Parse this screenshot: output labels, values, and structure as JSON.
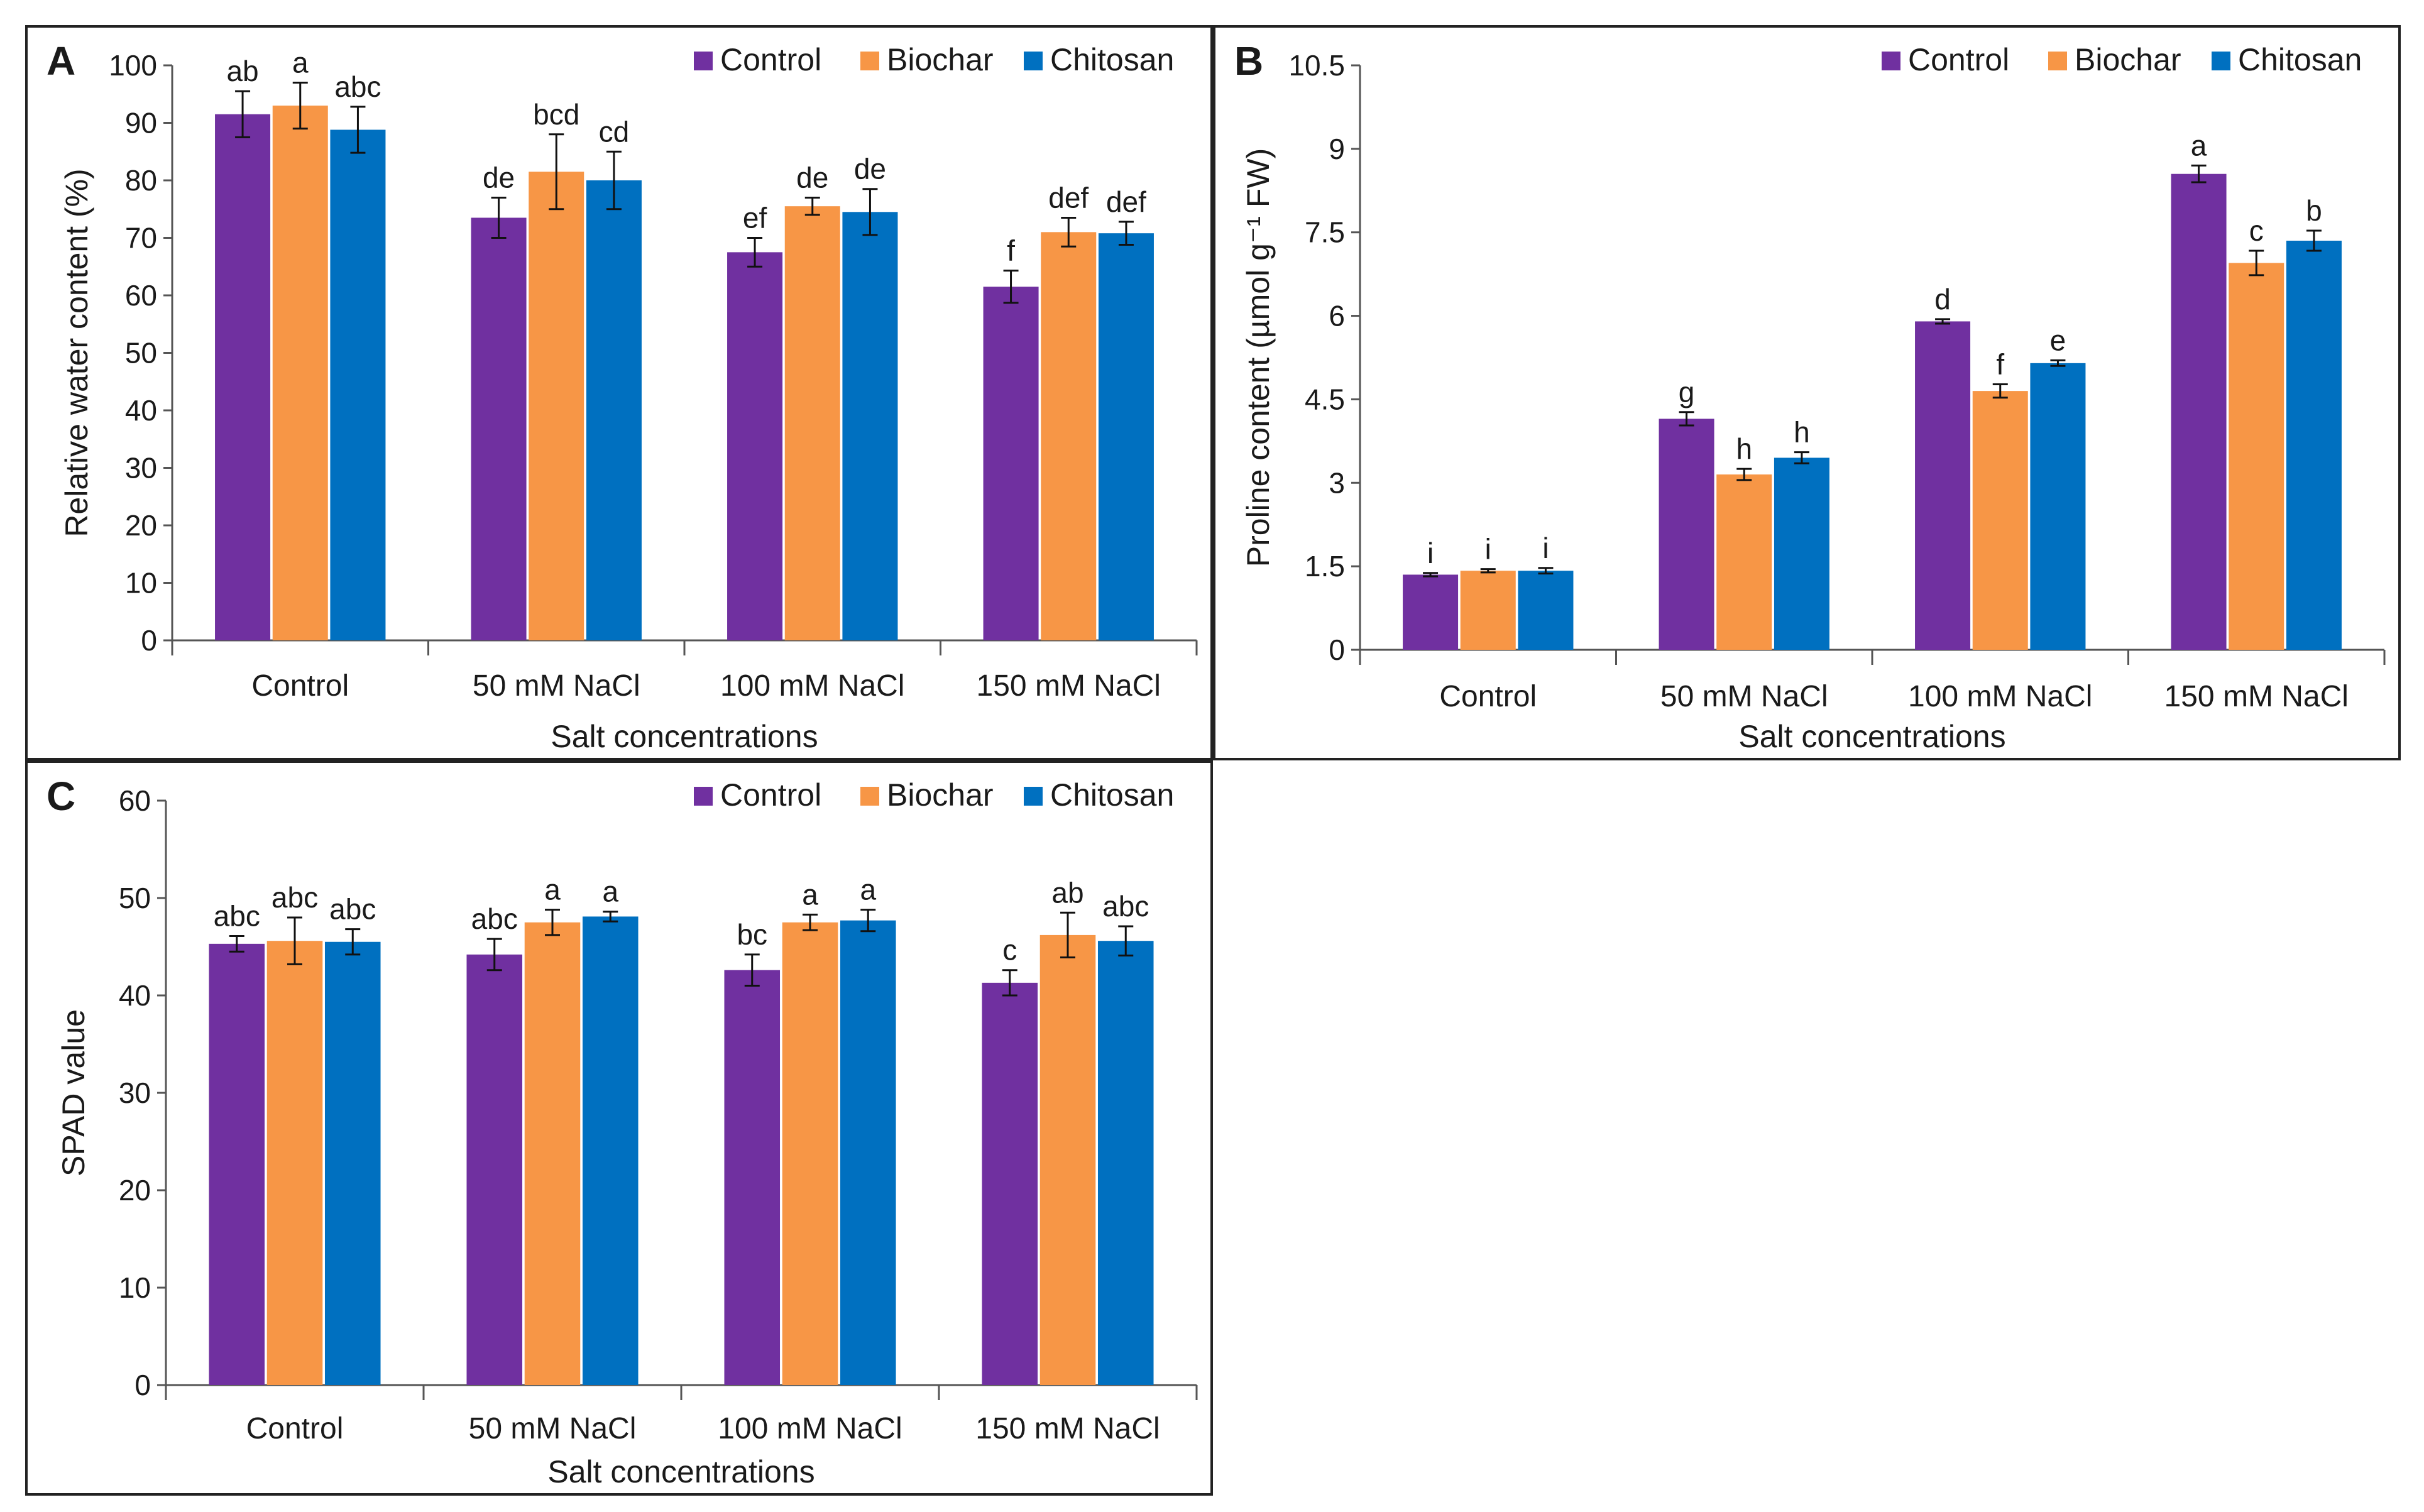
{
  "chart_data": [
    {
      "type": "bar",
      "panel_label": "A",
      "ylabel": "Relative water content (%)",
      "xlabel": "Salt concentrations",
      "ylim": [
        0,
        100
      ],
      "yticks": [
        "0",
        "10",
        "20",
        "30",
        "40",
        "50",
        "60",
        "70",
        "80",
        "90",
        "100"
      ],
      "categories": [
        "Control",
        "50 mM NaCl",
        "100 mM NaCl",
        "150 mM NaCl"
      ],
      "series": [
        {
          "name": "Control",
          "color": "#7030A0",
          "values": [
            91.5,
            73.5,
            67.5,
            61.5
          ],
          "errors": [
            4.0,
            3.5,
            2.5,
            2.8
          ],
          "letters": [
            "ab",
            "de",
            "ef",
            "f"
          ]
        },
        {
          "name": "Biochar",
          "color": "#F79646",
          "values": [
            93.0,
            81.5,
            75.5,
            71.0
          ],
          "errors": [
            4.0,
            6.5,
            1.5,
            2.5
          ],
          "letters": [
            "a",
            "bcd",
            "de",
            "def"
          ]
        },
        {
          "name": "Chitosan",
          "color": "#0070C0",
          "values": [
            88.8,
            80.0,
            74.5,
            70.8
          ],
          "errors": [
            4.0,
            5.0,
            4.0,
            2.0
          ],
          "letters": [
            "abc",
            "cd",
            "de",
            "def"
          ]
        }
      ]
    },
    {
      "type": "bar",
      "panel_label": "B",
      "ylabel": "Proline content (µmol g⁻¹ FW)",
      "xlabel": "Salt concentrations",
      "ylim": [
        0,
        10.5
      ],
      "yticks": [
        "0",
        "1.5",
        "3",
        "4.5",
        "6",
        "7.5",
        "9",
        "10.5"
      ],
      "categories": [
        "Control",
        "50 mM NaCl",
        "100 mM NaCl",
        "150 mM NaCl"
      ],
      "series": [
        {
          "name": "Control",
          "color": "#7030A0",
          "values": [
            1.35,
            4.15,
            5.9,
            8.55
          ],
          "errors": [
            0.03,
            0.12,
            0.04,
            0.15
          ],
          "letters": [
            "i",
            "g",
            "d",
            "a"
          ]
        },
        {
          "name": "Biochar",
          "color": "#F79646",
          "values": [
            1.42,
            3.15,
            4.65,
            6.95
          ],
          "errors": [
            0.03,
            0.1,
            0.12,
            0.22
          ],
          "letters": [
            "i",
            "h",
            "f",
            "c"
          ]
        },
        {
          "name": "Chitosan",
          "color": "#0070C0",
          "values": [
            1.42,
            3.45,
            5.15,
            7.35
          ],
          "errors": [
            0.05,
            0.1,
            0.05,
            0.18
          ],
          "letters": [
            "i",
            "h",
            "e",
            "b"
          ]
        }
      ]
    },
    {
      "type": "bar",
      "panel_label": "C",
      "ylabel": "SPAD value",
      "xlabel": "Salt concentrations",
      "ylim": [
        0,
        60
      ],
      "yticks": [
        "0",
        "10",
        "20",
        "30",
        "40",
        "50",
        "60"
      ],
      "categories": [
        "Control",
        "50 mM NaCl",
        "100 mM NaCl",
        "150 mM NaCl"
      ],
      "series": [
        {
          "name": "Control",
          "color": "#7030A0",
          "values": [
            45.3,
            44.2,
            42.6,
            41.3
          ],
          "errors": [
            0.8,
            1.6,
            1.6,
            1.3
          ],
          "letters": [
            "abc",
            "abc",
            "bc",
            "c"
          ]
        },
        {
          "name": "Biochar",
          "color": "#F79646",
          "values": [
            45.6,
            47.5,
            47.5,
            46.2
          ],
          "errors": [
            2.4,
            1.3,
            0.8,
            2.3
          ],
          "letters": [
            "abc",
            "a",
            "a",
            "ab"
          ]
        },
        {
          "name": "Chitosan",
          "color": "#0070C0",
          "values": [
            45.5,
            48.1,
            47.7,
            45.6
          ],
          "errors": [
            1.3,
            0.5,
            1.1,
            1.5
          ],
          "letters": [
            "abc",
            "a",
            "a",
            "abc"
          ]
        }
      ]
    }
  ]
}
